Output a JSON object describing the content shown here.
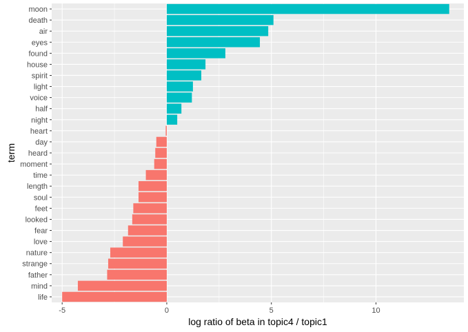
{
  "chart_data": {
    "type": "bar",
    "orientation": "horizontal",
    "xlabel": "log ratio of beta in topic4 / topic1",
    "ylabel": "term",
    "xlim": [
      -5.5,
      14.2
    ],
    "xticks": [
      -5,
      0,
      5,
      10
    ],
    "xtick_labels": [
      "-5",
      "0",
      "5",
      "10"
    ],
    "grid": true,
    "legend": "none",
    "positive_color": "#00BFC4",
    "negative_color": "#F8766D",
    "panel_color": "#EBEBEB",
    "terms": [
      "moon",
      "death",
      "air",
      "eyes",
      "found",
      "house",
      "spirit",
      "light",
      "voice",
      "half",
      "night",
      "heart",
      "day",
      "heard",
      "moment",
      "time",
      "length",
      "soul",
      "feet",
      "looked",
      "fear",
      "love",
      "nature",
      "strange",
      "father",
      "mind",
      "life"
    ],
    "values": [
      13.5,
      5.1,
      4.85,
      4.45,
      2.8,
      1.85,
      1.65,
      1.25,
      1.2,
      0.7,
      0.5,
      -0.05,
      -0.5,
      -0.55,
      -0.6,
      -1.0,
      -1.35,
      -1.35,
      -1.6,
      -1.65,
      -1.85,
      -2.1,
      -2.7,
      -2.8,
      -2.85,
      -4.25,
      -5.0
    ]
  }
}
